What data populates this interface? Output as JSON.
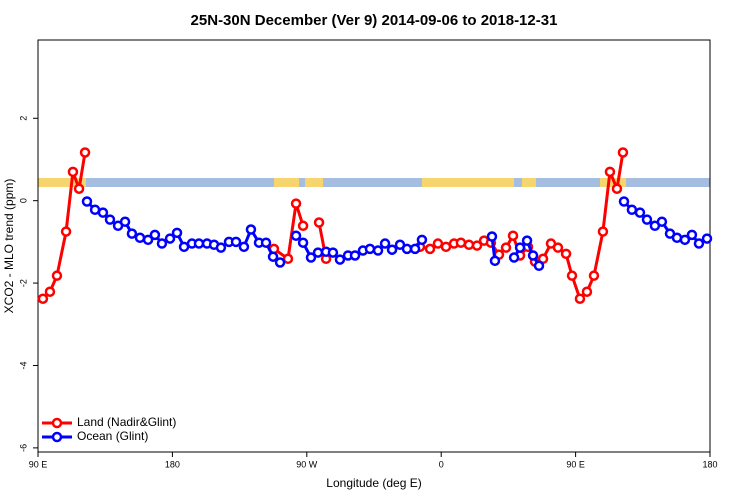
{
  "chart_data": {
    "type": "line",
    "title": "25N-30N December (Ver 9)   2014-09-06 to 2018-12-31",
    "x_label": "Longitude (deg E)",
    "y_label": "XCO2 - MLO trend (ppm)",
    "xlim": [
      90,
      540
    ],
    "ylim": [
      -6.1,
      3.9
    ],
    "xticks": [
      {
        "value": 90,
        "label": "90 E"
      },
      180,
      {
        "value": 270,
        "label": "90 W"
      },
      {
        "value": 360,
        "label": "0"
      },
      {
        "value": 450,
        "label": "90 E"
      },
      {
        "value": 540,
        "label": "180"
      }
    ],
    "yticks": [
      -6,
      -4,
      -2,
      0,
      2
    ],
    "legend": "bottom-left",
    "series": [
      {
        "name": "Land (Nadir&Glint)",
        "color": "#ff0000",
        "x": [
          93.3,
          98.0,
          102.7,
          108.8,
          113.4,
          117.5,
          121.5,
          null,
          248.0,
          257.4,
          262.8,
          267.5,
          null,
          278.2,
          282.9,
          null,
          345.8,
          352.5,
          357.8,
          363.2,
          368.6,
          373.2,
          378.6,
          384.0,
          388.7,
          393.3,
          398.7,
          403.4,
          408.1,
          412.8,
          418.1,
          422.8,
          428.2,
          433.5,
          438.2,
          443.6,
          447.6,
          452.9,
          457.6,
          462.3,
          468.3,
          473.0,
          477.7,
          481.7
        ],
        "values": [
          -2.38,
          -2.21,
          -1.82,
          -0.75,
          0.7,
          0.29,
          1.17,
          null,
          -1.17,
          -1.41,
          -0.07,
          -0.61,
          null,
          -0.53,
          -1.41,
          null,
          -1.12,
          -1.17,
          -1.04,
          -1.12,
          -1.04,
          -1.02,
          -1.07,
          -1.09,
          -0.97,
          -1.02,
          -1.31,
          -1.14,
          -0.85,
          -1.33,
          -1.12,
          -1.48,
          -1.41,
          -1.04,
          -1.14,
          -1.29,
          -1.82,
          -2.38,
          -2.21,
          -1.82,
          -0.75,
          0.7,
          0.29,
          1.17
        ]
      },
      {
        "name": "Ocean (Glint)",
        "color": "#0000ff",
        "x": [
          122.8,
          128.2,
          133.5,
          138.2,
          143.6,
          148.3,
          152.9,
          158.3,
          163.7,
          168.3,
          173.0,
          178.4,
          183.1,
          187.8,
          193.1,
          197.8,
          203.2,
          207.9,
          212.5,
          217.9,
          222.6,
          227.9,
          232.6,
          238.0,
          242.7,
          247.4,
          252.1,
          null,
          262.8,
          267.5,
          272.8,
          277.5,
          282.9,
          287.5,
          292.2,
          297.6,
          302.3,
          307.6,
          312.3,
          317.7,
          322.4,
          327.1,
          332.4,
          337.1,
          342.5,
          347.1,
          null,
          394.0,
          396.0,
          null,
          408.8,
          412.8,
          417.5,
          421.5,
          425.5,
          null,
          482.4,
          487.7,
          493.1,
          497.8,
          503.1,
          507.8,
          513.2,
          517.9,
          523.2,
          527.9,
          532.6,
          538.0
        ],
        "values": [
          -0.02,
          -0.22,
          -0.29,
          -0.46,
          -0.61,
          -0.51,
          -0.8,
          -0.9,
          -0.95,
          -0.83,
          -1.04,
          -0.92,
          -0.78,
          -1.12,
          -1.04,
          -1.04,
          -1.04,
          -1.07,
          -1.14,
          -1.0,
          -1.0,
          -1.12,
          -0.7,
          -1.02,
          -1.02,
          -1.36,
          -1.5,
          null,
          -0.85,
          -1.02,
          -1.38,
          -1.26,
          -1.24,
          -1.26,
          -1.43,
          -1.33,
          -1.33,
          -1.21,
          -1.17,
          -1.21,
          -1.04,
          -1.19,
          -1.07,
          -1.17,
          -1.17,
          -0.95,
          null,
          -0.87,
          -1.46,
          null,
          -1.38,
          -1.14,
          -0.97,
          -1.33,
          -1.58,
          null,
          -0.02,
          -0.22,
          -0.29,
          -0.46,
          -0.61,
          -0.51,
          -0.8,
          -0.9,
          -0.95,
          -0.83,
          -1.04,
          -0.92
        ]
      }
    ]
  }
}
